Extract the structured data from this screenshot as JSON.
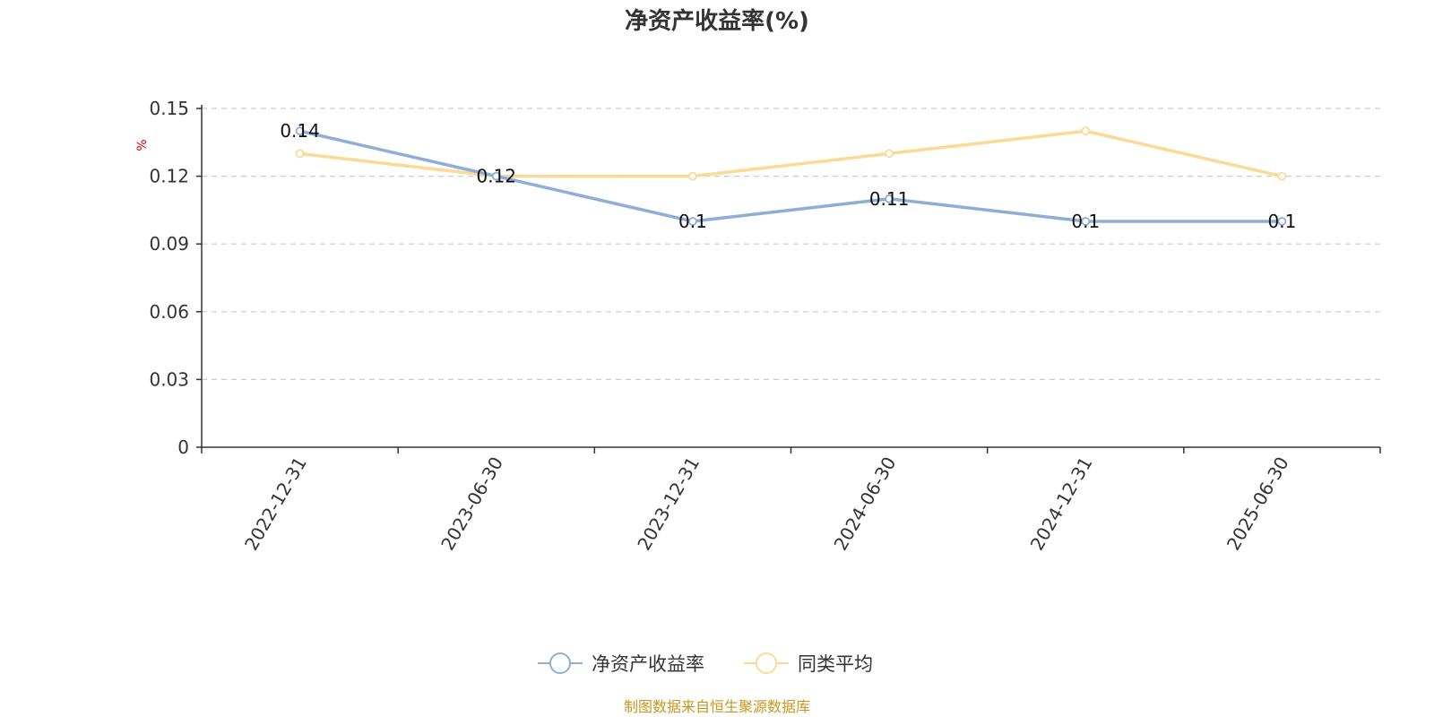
{
  "chart_data": {
    "type": "line",
    "title": "净资产收益率(%)",
    "y_unit": "%",
    "categories": [
      "2022-12-31",
      "2023-06-30",
      "2023-12-31",
      "2024-06-30",
      "2024-12-31",
      "2025-06-30"
    ],
    "ylim": [
      0,
      0.15
    ],
    "yticks": [
      0,
      0.03,
      0.06,
      0.09,
      0.12,
      0.15
    ],
    "ytick_labels": [
      "0",
      "0.03",
      "0.06",
      "0.09",
      "0.12",
      "0.15"
    ],
    "grid": true,
    "legend_position": "bottom-center",
    "series": [
      {
        "name": "净资产收益率",
        "values": [
          0.14,
          0.12,
          0.1,
          0.11,
          0.1,
          0.1
        ],
        "data_labels": [
          "0.14",
          "0.12",
          "0.1",
          "0.11",
          "0.1",
          "0.1"
        ],
        "color": "#8eaed8"
      },
      {
        "name": "同类平均",
        "values": [
          0.13,
          0.12,
          0.12,
          0.13,
          0.14,
          0.12
        ],
        "color": "#fbd996"
      }
    ]
  },
  "footer": {
    "source": "制图数据来自恒生聚源数据库"
  },
  "colors": {
    "axis": "#333333",
    "grid": "#cccccc",
    "source": "#c8961e",
    "unit": "#e00000"
  }
}
